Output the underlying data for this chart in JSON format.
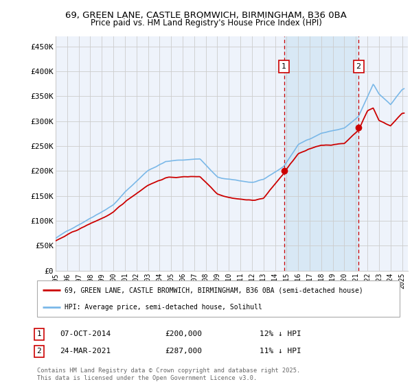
{
  "title_line1": "69, GREEN LANE, CASTLE BROMWICH, BIRMINGHAM, B36 0BA",
  "title_line2": "Price paid vs. HM Land Registry's House Price Index (HPI)",
  "ytick_labels": [
    "£0",
    "£50K",
    "£100K",
    "£150K",
    "£200K",
    "£250K",
    "£300K",
    "£350K",
    "£400K",
    "£450K"
  ],
  "yticks": [
    0,
    50000,
    100000,
    150000,
    200000,
    250000,
    300000,
    350000,
    400000,
    450000
  ],
  "xlim_start": 1995.0,
  "xlim_end": 2025.5,
  "ylim_bottom": 0,
  "ylim_top": 470000,
  "hpi_color": "#7ab8e8",
  "price_color": "#cc0000",
  "grid_color": "#cccccc",
  "background_color": "#eef3fb",
  "shade_color": "#d8e8f5",
  "marker1_date": 2014.77,
  "marker1_price": 200000,
  "marker2_date": 2021.23,
  "marker2_price": 287000,
  "marker1_label": "07-OCT-2014",
  "marker2_label": "24-MAR-2021",
  "marker1_price_str": "£200,000",
  "marker2_price_str": "£287,000",
  "marker1_pct": "12% ↓ HPI",
  "marker2_pct": "11% ↓ HPI",
  "legend_label_price": "69, GREEN LANE, CASTLE BROMWICH, BIRMINGHAM, B36 0BA (semi-detached house)",
  "legend_label_hpi": "HPI: Average price, semi-detached house, Solihull",
  "footer": "Contains HM Land Registry data © Crown copyright and database right 2025.\nThis data is licensed under the Open Government Licence v3.0."
}
